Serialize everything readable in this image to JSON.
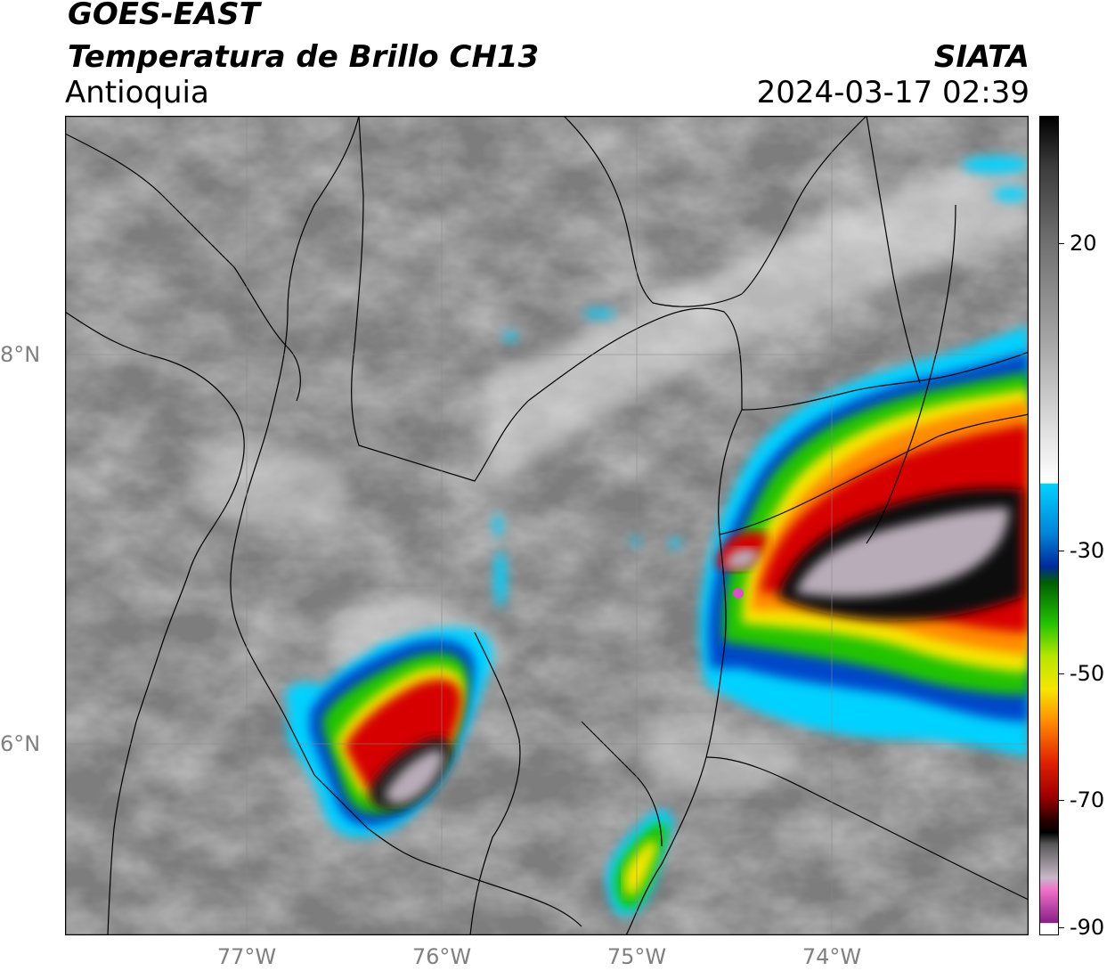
{
  "header": {
    "satellite": "GOES-EAST",
    "product": "Temperatura de Brillo CH13",
    "region": "Antioquia",
    "organization": "SIATA",
    "datetime": "2024-03-17 02:39"
  },
  "map": {
    "projection": "lat-lon",
    "lon_range": [
      -77.95,
      -73.05
    ],
    "lat_range": [
      5.0,
      9.2
    ],
    "gridlines": true,
    "grid_color": "#8a8a8a",
    "lat_ticks": [
      {
        "value": 8,
        "label": "8°N"
      },
      {
        "value": 6,
        "label": "6°N"
      }
    ],
    "lon_ticks": [
      {
        "value": -77,
        "label": "77°W"
      },
      {
        "value": -76,
        "label": "76°W"
      },
      {
        "value": -75,
        "label": "75°W"
      },
      {
        "value": -74,
        "label": "74°W"
      }
    ],
    "storm_cells": [
      {
        "lon": -73.75,
        "lat": 6.75,
        "min_temp": -85
      },
      {
        "lon": -76.05,
        "lat": 5.82,
        "min_temp": -72
      },
      {
        "lon": -75.0,
        "lat": 5.35,
        "min_temp": -45
      }
    ]
  },
  "colorbar": {
    "range": [
      -90,
      35
    ],
    "ticks": [
      {
        "value": 20,
        "label": "20"
      },
      {
        "value": -30,
        "label": "-30"
      },
      {
        "value": -50,
        "label": "-50"
      },
      {
        "value": -70,
        "label": "-70"
      },
      {
        "value": -90,
        "label": "-90"
      }
    ],
    "colors": {
      "magenta": "#d94fc7",
      "black": "#000000",
      "red": "#d60000",
      "orange": "#ff8a00",
      "yellow": "#f5e600",
      "green": "#22c400",
      "blue": "#002a9c",
      "cyan": "#00d2ff",
      "white": "#ffffff",
      "gray": "#7a7a7a"
    }
  }
}
